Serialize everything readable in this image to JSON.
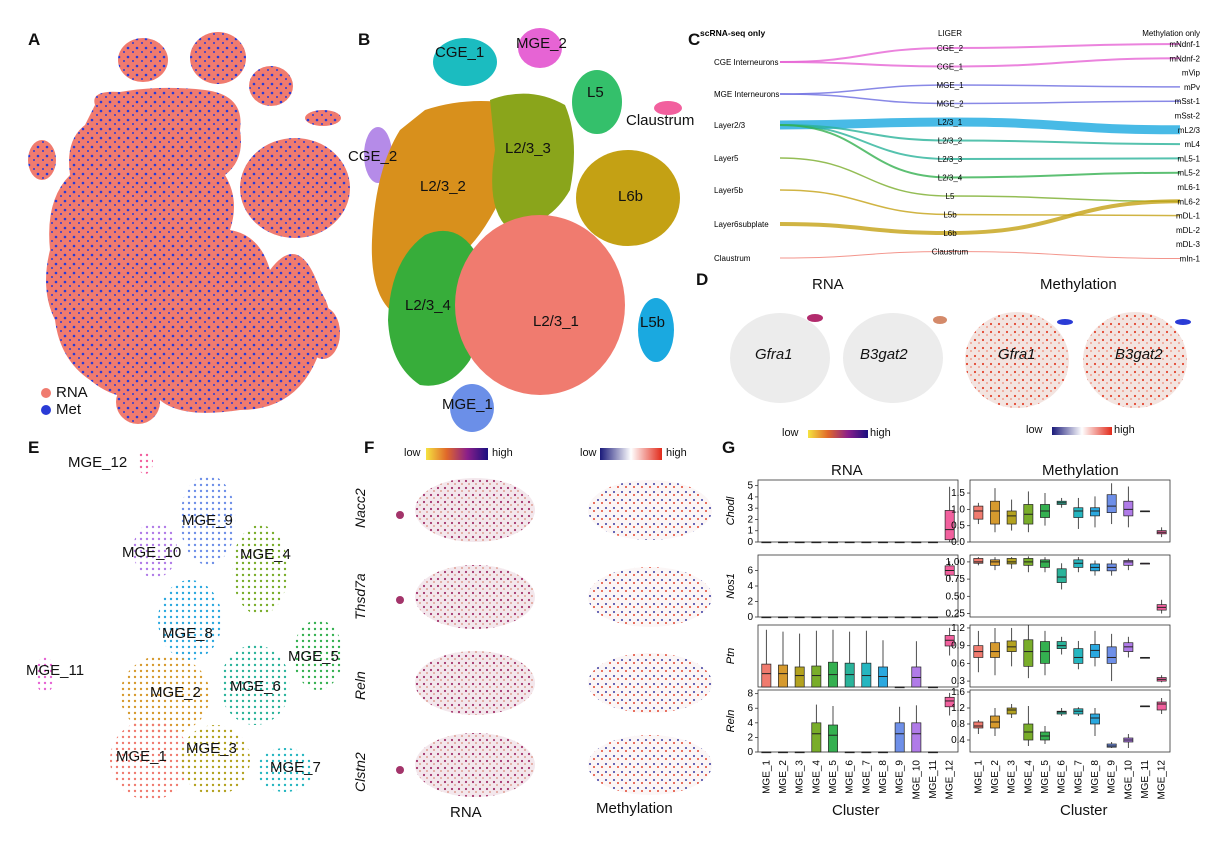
{
  "panels": {
    "A": {
      "label": "A",
      "legend": [
        {
          "name": "RNA",
          "color": "#f07b6f"
        },
        {
          "name": "Met",
          "color": "#2a3bd6"
        }
      ]
    },
    "B": {
      "label": "B",
      "clusters": [
        "CGE_1",
        "MGE_2",
        "L5",
        "Claustrum",
        "CGE_2",
        "L2/3_3",
        "L2/3_2",
        "L6b",
        "L2/3_4",
        "L2/3_1",
        "L5b",
        "MGE_1"
      ]
    },
    "C": {
      "label": "C",
      "left_header": "scRNA-seq only",
      "mid_header": "LIGER",
      "right_header": "Methylation only",
      "left": [
        "CGE Interneurons",
        "MGE Interneurons",
        "Layer2/3",
        "Layer5",
        "Layer5b",
        "Layer6subplate",
        "Claustrum"
      ],
      "mid": [
        "CGE_2",
        "CGE_1",
        "MGE_1",
        "MGE_2",
        "L2/3_1",
        "L2/3_2",
        "L2/3_3",
        "L2/3_4",
        "L5",
        "L5b",
        "L6b",
        "Claustrum"
      ],
      "right": [
        "mNdnf-1",
        "mNdnf-2",
        "mVip",
        "mPv",
        "mSst-1",
        "mSst-2",
        "mL2/3",
        "mL4",
        "mL5-1",
        "mL5-2",
        "mL6-1",
        "mL6-2",
        "mDL-1",
        "mDL-2",
        "mDL-3",
        "mIn-1"
      ]
    },
    "D": {
      "label": "D",
      "rna_title": "RNA",
      "met_title": "Methylation",
      "genes": [
        "Gfra1",
        "B3gat2",
        "Gfra1",
        "B3gat2"
      ],
      "scale_low": "low",
      "scale_high": "high"
    },
    "E": {
      "label": "E",
      "clusters": [
        "MGE_12",
        "MGE_9",
        "MGE_10",
        "MGE_4",
        "MGE_8",
        "MGE_5",
        "MGE_11",
        "MGE_2",
        "MGE_6",
        "MGE_1",
        "MGE_3",
        "MGE_7"
      ]
    },
    "F": {
      "label": "F",
      "genes": [
        "Nacc2",
        "Thsd7a",
        "Reln",
        "Clstn2"
      ],
      "rna_label": "RNA",
      "met_label": "Methylation",
      "scale_low": "low",
      "scale_high": "high"
    },
    "G": {
      "label": "G",
      "rna_title": "RNA",
      "met_title": "Methylation",
      "xlabel": "Cluster",
      "clusters": [
        "MGE_1",
        "MGE_2",
        "MGE_3",
        "MGE_4",
        "MGE_5",
        "MGE_6",
        "MGE_7",
        "MGE_8",
        "MGE_9",
        "MGE_10",
        "MGE_11",
        "MGE_12"
      ],
      "colors": [
        "#f07b6f",
        "#d69a2e",
        "#b3a21f",
        "#79ad2a",
        "#34b050",
        "#2ab39a",
        "#25b6c0",
        "#2aa8df",
        "#6e8fe8",
        "#b07be8",
        "#e664d4",
        "#f2609e"
      ],
      "genes": [
        "Chodl",
        "Nos1",
        "Ptn",
        "Reln"
      ]
    }
  },
  "chart_data": [
    {
      "type": "box",
      "title": "RNA",
      "ylabel": "Chodl",
      "xlabel": "Cluster",
      "categories": [
        "MGE_1",
        "MGE_2",
        "MGE_3",
        "MGE_4",
        "MGE_5",
        "MGE_6",
        "MGE_7",
        "MGE_8",
        "MGE_9",
        "MGE_10",
        "MGE_11",
        "MGE_12"
      ],
      "ylim": [
        0,
        5.5
      ],
      "yticks": [
        "0",
        "1",
        "2",
        "3",
        "4",
        "5"
      ],
      "boxes": [
        [
          0,
          0,
          0,
          0,
          0
        ],
        [
          0,
          0,
          0,
          0,
          0
        ],
        [
          0,
          0,
          0,
          0,
          0
        ],
        [
          0,
          0,
          0,
          0,
          0
        ],
        [
          0,
          0,
          0,
          0,
          0
        ],
        [
          0,
          0,
          0,
          0,
          0
        ],
        [
          0,
          0,
          0,
          0,
          0
        ],
        [
          0,
          0,
          0,
          0,
          0
        ],
        [
          0,
          0,
          0,
          0,
          0
        ],
        [
          0,
          0,
          0,
          0,
          0
        ],
        [
          0,
          0,
          0,
          0,
          0
        ],
        [
          0,
          0.2,
          1.1,
          2.8,
          4.9
        ]
      ]
    },
    {
      "type": "box",
      "title": "Methylation",
      "ylabel": "Chodl",
      "xlabel": "Cluster",
      "categories": [
        "MGE_1",
        "MGE_2",
        "MGE_3",
        "MGE_4",
        "MGE_5",
        "MGE_6",
        "MGE_7",
        "MGE_8",
        "MGE_9",
        "MGE_10",
        "MGE_11",
        "MGE_12"
      ],
      "ylim": [
        0,
        1.9
      ],
      "yticks": [
        "0.0",
        "0.5",
        "1.0",
        "1.5"
      ],
      "boxes": [
        [
          0.55,
          0.7,
          0.95,
          1.1,
          1.2
        ],
        [
          0.3,
          0.55,
          0.95,
          1.25,
          1.65
        ],
        [
          0.35,
          0.55,
          0.8,
          0.95,
          1.3
        ],
        [
          0.3,
          0.55,
          0.85,
          1.15,
          1.55
        ],
        [
          0.5,
          0.75,
          0.95,
          1.15,
          1.5
        ],
        [
          1.05,
          1.15,
          1.2,
          1.25,
          1.35
        ],
        [
          0.4,
          0.75,
          0.95,
          1.05,
          1.35
        ],
        [
          0.45,
          0.8,
          0.95,
          1.05,
          1.4
        ],
        [
          0.55,
          0.9,
          1.1,
          1.45,
          1.8
        ],
        [
          0.45,
          0.8,
          1.0,
          1.25,
          1.7
        ],
        [
          0.95,
          0.95,
          0.95,
          0.95,
          0.95
        ],
        [
          0.15,
          0.25,
          0.3,
          0.35,
          0.45
        ]
      ]
    },
    {
      "type": "box",
      "title": "RNA",
      "ylabel": "Nos1",
      "xlabel": "Cluster",
      "categories": [
        "MGE_1",
        "MGE_2",
        "MGE_3",
        "MGE_4",
        "MGE_5",
        "MGE_6",
        "MGE_7",
        "MGE_8",
        "MGE_9",
        "MGE_10",
        "MGE_11",
        "MGE_12"
      ],
      "ylim": [
        0,
        8
      ],
      "yticks": [
        "0",
        "2",
        "4",
        "6"
      ],
      "boxes": [
        [
          0,
          0,
          0,
          0,
          0
        ],
        [
          0,
          0,
          0,
          0,
          0
        ],
        [
          0,
          0,
          0,
          0,
          0
        ],
        [
          0,
          0,
          0,
          0,
          0
        ],
        [
          0,
          0,
          0,
          0,
          0
        ],
        [
          0,
          0,
          0,
          0,
          0
        ],
        [
          0,
          0,
          0,
          0,
          0
        ],
        [
          0,
          0,
          0,
          0,
          0
        ],
        [
          0,
          0,
          0,
          0,
          0
        ],
        [
          0,
          0,
          0,
          0,
          0
        ],
        [
          0,
          0,
          0,
          0,
          0
        ],
        [
          4.8,
          5.4,
          6.0,
          6.6,
          7.2
        ]
      ]
    },
    {
      "type": "box",
      "title": "Methylation",
      "ylabel": "Nos1",
      "xlabel": "Cluster",
      "categories": [
        "MGE_1",
        "MGE_2",
        "MGE_3",
        "MGE_4",
        "MGE_5",
        "MGE_6",
        "MGE_7",
        "MGE_8",
        "MGE_9",
        "MGE_10",
        "MGE_11",
        "MGE_12"
      ],
      "ylim": [
        0.2,
        1.1
      ],
      "yticks": [
        "0.25",
        "0.50",
        "0.75",
        "1.00"
      ],
      "boxes": [
        [
          0.95,
          0.98,
          1.0,
          1.05,
          1.07
        ],
        [
          0.88,
          0.95,
          1.0,
          1.03,
          1.07
        ],
        [
          0.9,
          0.97,
          1.0,
          1.05,
          1.07
        ],
        [
          0.85,
          0.95,
          1.0,
          1.05,
          1.08
        ],
        [
          0.85,
          0.92,
          1.0,
          1.03,
          1.07
        ],
        [
          0.6,
          0.7,
          0.78,
          0.9,
          0.98
        ],
        [
          0.85,
          0.92,
          0.98,
          1.03,
          1.07
        ],
        [
          0.8,
          0.87,
          0.92,
          0.97,
          1.02
        ],
        [
          0.8,
          0.87,
          0.92,
          0.97,
          1.03
        ],
        [
          0.88,
          0.95,
          1.0,
          1.02,
          1.05
        ],
        [
          0.98,
          0.98,
          0.98,
          0.98,
          0.98
        ],
        [
          0.25,
          0.3,
          0.34,
          0.38,
          0.45
        ]
      ]
    },
    {
      "type": "box",
      "title": "RNA",
      "ylabel": "Ptn",
      "xlabel": "Cluster",
      "categories": [
        "MGE_1",
        "MGE_2",
        "MGE_3",
        "MGE_4",
        "MGE_5",
        "MGE_6",
        "MGE_7",
        "MGE_8",
        "MGE_9",
        "MGE_10",
        "MGE_11",
        "MGE_12"
      ],
      "ylim": [
        0,
        6.5
      ],
      "yticks": [],
      "boxes": [
        [
          0,
          0,
          1.4,
          2.4,
          6.0
        ],
        [
          0,
          0,
          1.4,
          2.3,
          5.8
        ],
        [
          0,
          0,
          1.2,
          2.1,
          5.6
        ],
        [
          0,
          0,
          1.2,
          2.2,
          5.9
        ],
        [
          0,
          0,
          1.3,
          2.6,
          6.0
        ],
        [
          0,
          0,
          1.3,
          2.5,
          5.8
        ],
        [
          0,
          0,
          1.2,
          2.5,
          5.9
        ],
        [
          0,
          0,
          1.1,
          2.1,
          4.9
        ],
        [
          0,
          0,
          0,
          0,
          0
        ],
        [
          0,
          0,
          1.0,
          2.1,
          4.8
        ],
        [
          0,
          0,
          0,
          0,
          0
        ],
        [
          3.3,
          4.3,
          4.9,
          5.4,
          6.2
        ]
      ]
    },
    {
      "type": "box",
      "title": "Methylation",
      "ylabel": "Ptn",
      "xlabel": "Cluster",
      "categories": [
        "MGE_1",
        "MGE_2",
        "MGE_3",
        "MGE_4",
        "MGE_5",
        "MGE_6",
        "MGE_7",
        "MGE_8",
        "MGE_9",
        "MGE_10",
        "MGE_11",
        "MGE_12"
      ],
      "ylim": [
        0.2,
        1.25
      ],
      "yticks": [
        "0.3",
        "0.6",
        "0.9",
        "1.2"
      ],
      "boxes": [
        [
          0.45,
          0.7,
          0.8,
          0.9,
          1.15
        ],
        [
          0.4,
          0.7,
          0.8,
          0.95,
          1.2
        ],
        [
          0.55,
          0.8,
          0.88,
          0.98,
          1.2
        ],
        [
          0.35,
          0.55,
          0.8,
          1.0,
          1.25
        ],
        [
          0.4,
          0.6,
          0.8,
          0.97,
          1.15
        ],
        [
          0.75,
          0.85,
          0.9,
          0.97,
          1.05
        ],
        [
          0.5,
          0.6,
          0.7,
          0.85,
          0.98
        ],
        [
          0.55,
          0.7,
          0.82,
          0.92,
          1.15
        ],
        [
          0.3,
          0.6,
          0.7,
          0.88,
          1.1
        ],
        [
          0.7,
          0.8,
          0.88,
          0.95,
          1.05
        ],
        [
          0.7,
          0.7,
          0.7,
          0.7,
          0.7
        ],
        [
          0.28,
          0.3,
          0.33,
          0.36,
          0.4
        ]
      ]
    },
    {
      "type": "box",
      "title": "RNA",
      "ylabel": "Reln",
      "xlabel": "Cluster",
      "categories": [
        "MGE_1",
        "MGE_2",
        "MGE_3",
        "MGE_4",
        "MGE_5",
        "MGE_6",
        "MGE_7",
        "MGE_8",
        "MGE_9",
        "MGE_10",
        "MGE_11",
        "MGE_12"
      ],
      "ylim": [
        0,
        8.5
      ],
      "yticks": [
        "0",
        "2",
        "4",
        "6",
        "8"
      ],
      "boxes": [
        [
          0,
          0,
          0,
          0,
          0
        ],
        [
          0,
          0,
          0,
          0,
          0
        ],
        [
          0,
          0,
          0,
          0,
          0
        ],
        [
          0,
          0,
          2.5,
          4.0,
          6.5
        ],
        [
          0,
          0,
          2.3,
          3.7,
          6.3
        ],
        [
          0,
          0,
          0,
          0,
          0
        ],
        [
          0,
          0,
          0,
          0,
          0
        ],
        [
          0,
          0,
          0,
          0,
          0
        ],
        [
          0,
          0,
          2.5,
          4.0,
          6.2
        ],
        [
          0,
          0,
          2.5,
          4.0,
          6.4
        ],
        [
          0,
          0,
          0,
          0,
          0
        ],
        [
          5.0,
          6.2,
          7.0,
          7.5,
          8.1
        ]
      ]
    },
    {
      "type": "box",
      "title": "Methylation",
      "ylabel": "Reln",
      "xlabel": "Cluster",
      "categories": [
        "MGE_1",
        "MGE_2",
        "MGE_3",
        "MGE_4",
        "MGE_5",
        "MGE_6",
        "MGE_7",
        "MGE_8",
        "MGE_9",
        "MGE_10",
        "MGE_11",
        "MGE_12"
      ],
      "ylim": [
        0.1,
        1.65
      ],
      "yticks": [
        "0.4",
        "0.8",
        "1.2",
        "1.6"
      ],
      "boxes": [
        [
          0.55,
          0.7,
          0.75,
          0.85,
          0.9
        ],
        [
          0.5,
          0.7,
          0.85,
          1.0,
          1.2
        ],
        [
          0.95,
          1.05,
          1.15,
          1.2,
          1.3
        ],
        [
          0.25,
          0.4,
          0.6,
          0.8,
          1.25
        ],
        [
          0.3,
          0.4,
          0.5,
          0.6,
          0.75
        ],
        [
          1.0,
          1.05,
          1.1,
          1.12,
          1.2
        ],
        [
          1.0,
          1.05,
          1.12,
          1.18,
          1.22
        ],
        [
          0.5,
          0.8,
          0.95,
          1.05,
          1.2
        ],
        [
          0.2,
          0.22,
          0.25,
          0.3,
          0.35
        ],
        [
          0.2,
          0.35,
          0.4,
          0.45,
          0.55
        ],
        [
          1.25,
          1.25,
          1.25,
          1.25,
          1.25
        ],
        [
          1.05,
          1.15,
          1.3,
          1.35,
          1.45
        ]
      ]
    }
  ]
}
